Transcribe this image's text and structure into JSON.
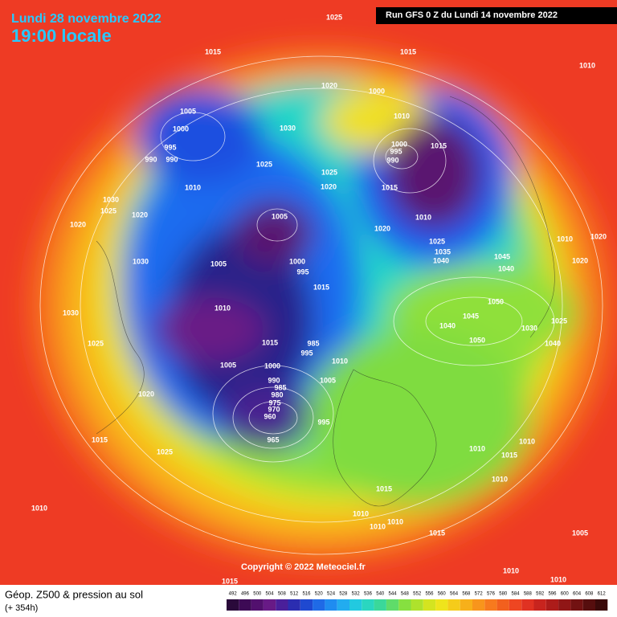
{
  "header": {
    "title": "Lundi 28 novembre 2022",
    "time": "19:00 locale",
    "run": "Run GFS 0 Z du Lundi 14 novembre 2022"
  },
  "copyright": "Copyright © 2022 Meteociel.fr",
  "footer": {
    "title": "Géop. Z500 & pression au sol",
    "lead": "(+ 354h)"
  },
  "colorbar": {
    "labels": [
      "492",
      "496",
      "500",
      "504",
      "508",
      "512",
      "516",
      "520",
      "524",
      "528",
      "532",
      "536",
      "540",
      "544",
      "548",
      "552",
      "556",
      "560",
      "564",
      "568",
      "572",
      "576",
      "580",
      "584",
      "588",
      "592",
      "596",
      "600",
      "604",
      "608",
      "612"
    ]
  },
  "isobar_labels": [
    "1025",
    "1015",
    "1015",
    "1010",
    "1020",
    "1000",
    "1005",
    "1010",
    "1030",
    "1000",
    "995",
    "990",
    "990",
    "1000",
    "995",
    "990",
    "1015",
    "1025",
    "1025",
    "1010",
    "1020",
    "1015",
    "1030",
    "1025",
    "1020",
    "1005",
    "1010",
    "1020",
    "1020",
    "1010",
    "1020",
    "1025",
    "1035",
    "1040",
    "1030",
    "1005",
    "1000",
    "995",
    "1045",
    "1040",
    "1020",
    "1015",
    "1050",
    "1010",
    "1030",
    "1045",
    "1040",
    "1025",
    "1015",
    "985",
    "995",
    "1050",
    "1030",
    "1025",
    "1040",
    "1005",
    "1000",
    "1010",
    "1005",
    "990",
    "985",
    "980",
    "975",
    "970",
    "1020",
    "960",
    "965",
    "995",
    "1015",
    "1025",
    "1010",
    "1010",
    "1015",
    "1010",
    "1015",
    "1010",
    "1010",
    "1010",
    "1015",
    "1010",
    "1005",
    "1010",
    "1010",
    "1015"
  ]
}
